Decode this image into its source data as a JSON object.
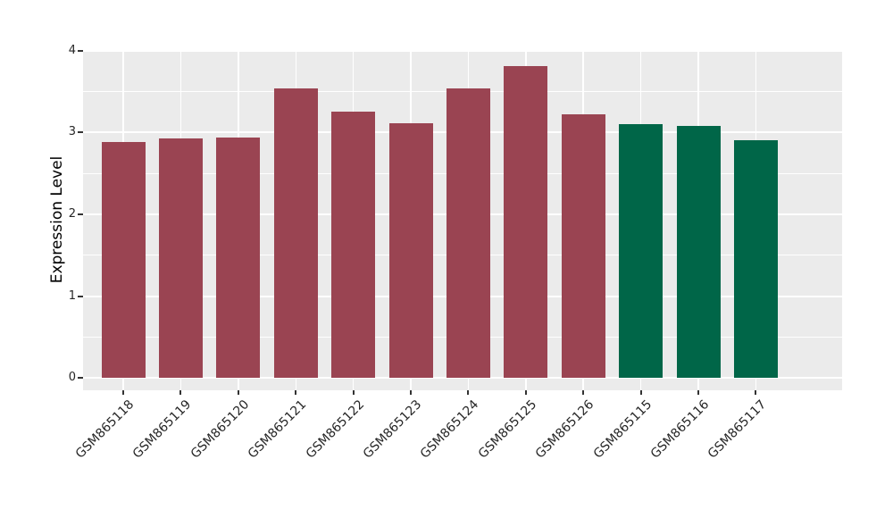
{
  "chart_data": {
    "type": "bar",
    "title": "",
    "xlabel": "",
    "ylabel": "Expression Level",
    "categories": [
      "GSM865118",
      "GSM865119",
      "GSM865120",
      "GSM865121",
      "GSM865122",
      "GSM865123",
      "GSM865124",
      "GSM865125",
      "GSM865126",
      "GSM865115",
      "GSM865116",
      "GSM865117"
    ],
    "values": [
      2.88,
      2.93,
      2.94,
      3.54,
      3.25,
      3.11,
      3.54,
      3.81,
      3.22,
      3.1,
      3.08,
      2.9
    ],
    "bar_colors": [
      "#9A4452",
      "#9A4452",
      "#9A4452",
      "#9A4452",
      "#9A4452",
      "#9A4452",
      "#9A4452",
      "#9A4452",
      "#9A4452",
      "#006648",
      "#006648",
      "#006648"
    ],
    "ylim": [
      0,
      4
    ],
    "yticks": [
      0,
      1,
      2,
      3,
      4
    ],
    "yticks_minor": [
      0.5,
      1.5,
      2.5,
      3.5
    ],
    "grid": true,
    "legend_position": "none",
    "colors": {
      "panel_background": "#EBEBEB",
      "figure_background": "#FFFFFF",
      "gridline": "#FFFFFF",
      "tick_mark": "#333333",
      "tick_text": "#262626",
      "axis_title_text": "#000000",
      "bar_maroon": "#9A4452",
      "bar_green": "#006648"
    }
  }
}
